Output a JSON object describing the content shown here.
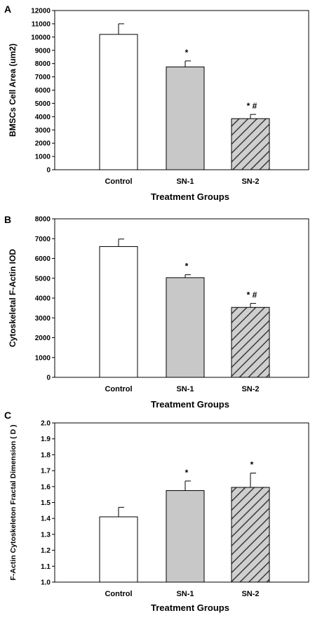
{
  "chart_data": [
    {
      "panel": "A",
      "type": "bar",
      "categories": [
        "Control",
        "SN-1",
        "SN-2"
      ],
      "values": [
        10200,
        7750,
        3850
      ],
      "errors": [
        800,
        450,
        320
      ],
      "annotations": [
        "",
        "*",
        "* #"
      ],
      "styles": [
        "white",
        "gray",
        "hatched"
      ],
      "xlabel": "Treatment Groups",
      "ylabel": "BMSCs Cell Area (um2)",
      "ylim": [
        0,
        12000
      ],
      "yticks": [
        0,
        1000,
        2000,
        3000,
        4000,
        5000,
        6000,
        7000,
        8000,
        9000,
        10000,
        11000,
        12000
      ]
    },
    {
      "panel": "B",
      "type": "bar",
      "categories": [
        "Control",
        "SN-1",
        "SN-2"
      ],
      "values": [
        6600,
        5030,
        3530
      ],
      "errors": [
        380,
        150,
        200
      ],
      "annotations": [
        "",
        "*",
        "*  #"
      ],
      "styles": [
        "white",
        "gray",
        "hatched"
      ],
      "xlabel": "Treatment Groups",
      "ylabel": "Cytoskeletal F-Actin IOD",
      "ylim": [
        0,
        8000
      ],
      "yticks": [
        0,
        1000,
        2000,
        3000,
        4000,
        5000,
        6000,
        7000,
        8000
      ]
    },
    {
      "panel": "C",
      "type": "bar",
      "categories": [
        "Control",
        "SN-1",
        "SN-2"
      ],
      "values": [
        1.41,
        1.575,
        1.595
      ],
      "errors": [
        0.06,
        0.06,
        0.09
      ],
      "annotations": [
        "",
        "*",
        "*"
      ],
      "styles": [
        "white",
        "gray",
        "hatched"
      ],
      "xlabel": "Treatment Groups",
      "ylabel": "F-Actin Cytoskeleton Fractal Dimension ( D )",
      "ylim": [
        1.0,
        2.0
      ],
      "yticks": [
        "1.0",
        "1.1",
        "1.2",
        "1.3",
        "1.4",
        "1.5",
        "1.6",
        "1.7",
        "1.8",
        "1.9",
        "2.0"
      ]
    }
  ],
  "colors": {
    "white": "#ffffff",
    "gray": "#c8c8c8",
    "hatch_fill": "#cfcfcf",
    "hatch_line": "#3a3a3a"
  }
}
